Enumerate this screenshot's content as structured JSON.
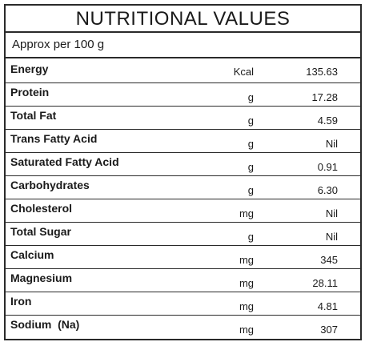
{
  "title": "NUTRITIONAL VALUES",
  "subtitle": "Approx per 100 g",
  "rows": [
    {
      "name": "Energy",
      "unit": "Kcal",
      "value": "135.63"
    },
    {
      "name": "Protein",
      "unit": "g",
      "value": "17.28"
    },
    {
      "name": "Total Fat",
      "unit": "g",
      "value": "4.59"
    },
    {
      "name": "Trans Fatty Acid",
      "unit": "g",
      "value": "Nil"
    },
    {
      "name": "Saturated Fatty Acid",
      "unit": "g",
      "value": "0.91"
    },
    {
      "name": "Carbohydrates",
      "unit": "g",
      "value": "6.30"
    },
    {
      "name": "Cholesterol",
      "unit": "mg",
      "value": "Nil"
    },
    {
      "name": "Total Sugar",
      "unit": "g",
      "value": "Nil"
    },
    {
      "name": "Calcium",
      "unit": "mg",
      "value": "345"
    },
    {
      "name": "Magnesium",
      "unit": "mg",
      "value": "28.11"
    },
    {
      "name": "Iron",
      "unit": "mg",
      "value": "4.81"
    },
    {
      "name": "Sodium  (Na)",
      "unit": "mg",
      "value": "307"
    }
  ]
}
